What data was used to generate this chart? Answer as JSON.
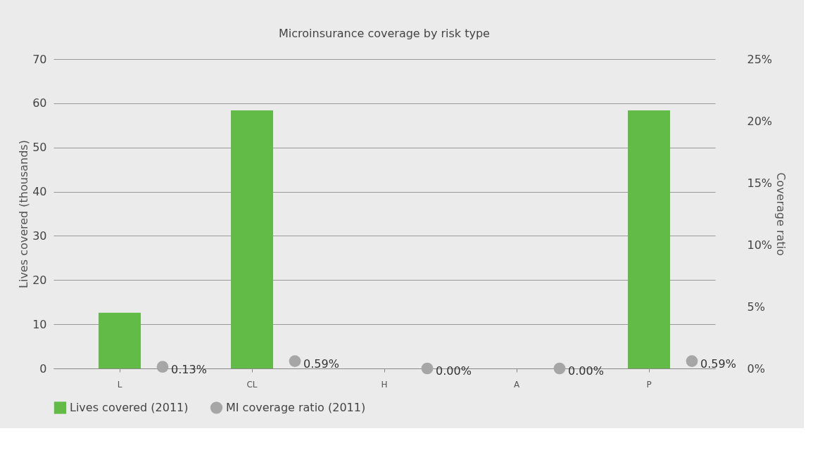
{
  "chart_data": {
    "type": "bar",
    "title": "Microinsurance coverage by risk type",
    "categories": [
      "L",
      "CL",
      "H",
      "A",
      "P"
    ],
    "series": [
      {
        "name": "Lives covered (2011)",
        "color": "#62bb46",
        "values": [
          12.6,
          58.4,
          0,
          0,
          58.4
        ]
      },
      {
        "name": "MI coverage ratio (2011)",
        "type": "scatter",
        "axis": "y2",
        "color": "#a6a6a6",
        "values": [
          0.13,
          0.59,
          0,
          0,
          0.59
        ],
        "value_labels": [
          "0.13%",
          "0.59%",
          "0.00%",
          "0.00%",
          "0.59%"
        ]
      }
    ],
    "ylabel": "Lives covered (thousands)",
    "y2label": "Coverage ratio",
    "ylim": [
      0,
      70
    ],
    "yticks": [
      0,
      10,
      20,
      30,
      40,
      50,
      60,
      70
    ],
    "y2lim": [
      0,
      25
    ],
    "y2ticks": [
      {
        "value": 0,
        "label": "0%"
      },
      {
        "value": 5,
        "label": "5%"
      },
      {
        "value": 10,
        "label": "10%"
      },
      {
        "value": 15,
        "label": "15%"
      },
      {
        "value": 20,
        "label": "20%"
      },
      {
        "value": 25,
        "label": "25%"
      }
    ],
    "grid": "y",
    "legend": "bottom",
    "marker": "circle"
  }
}
